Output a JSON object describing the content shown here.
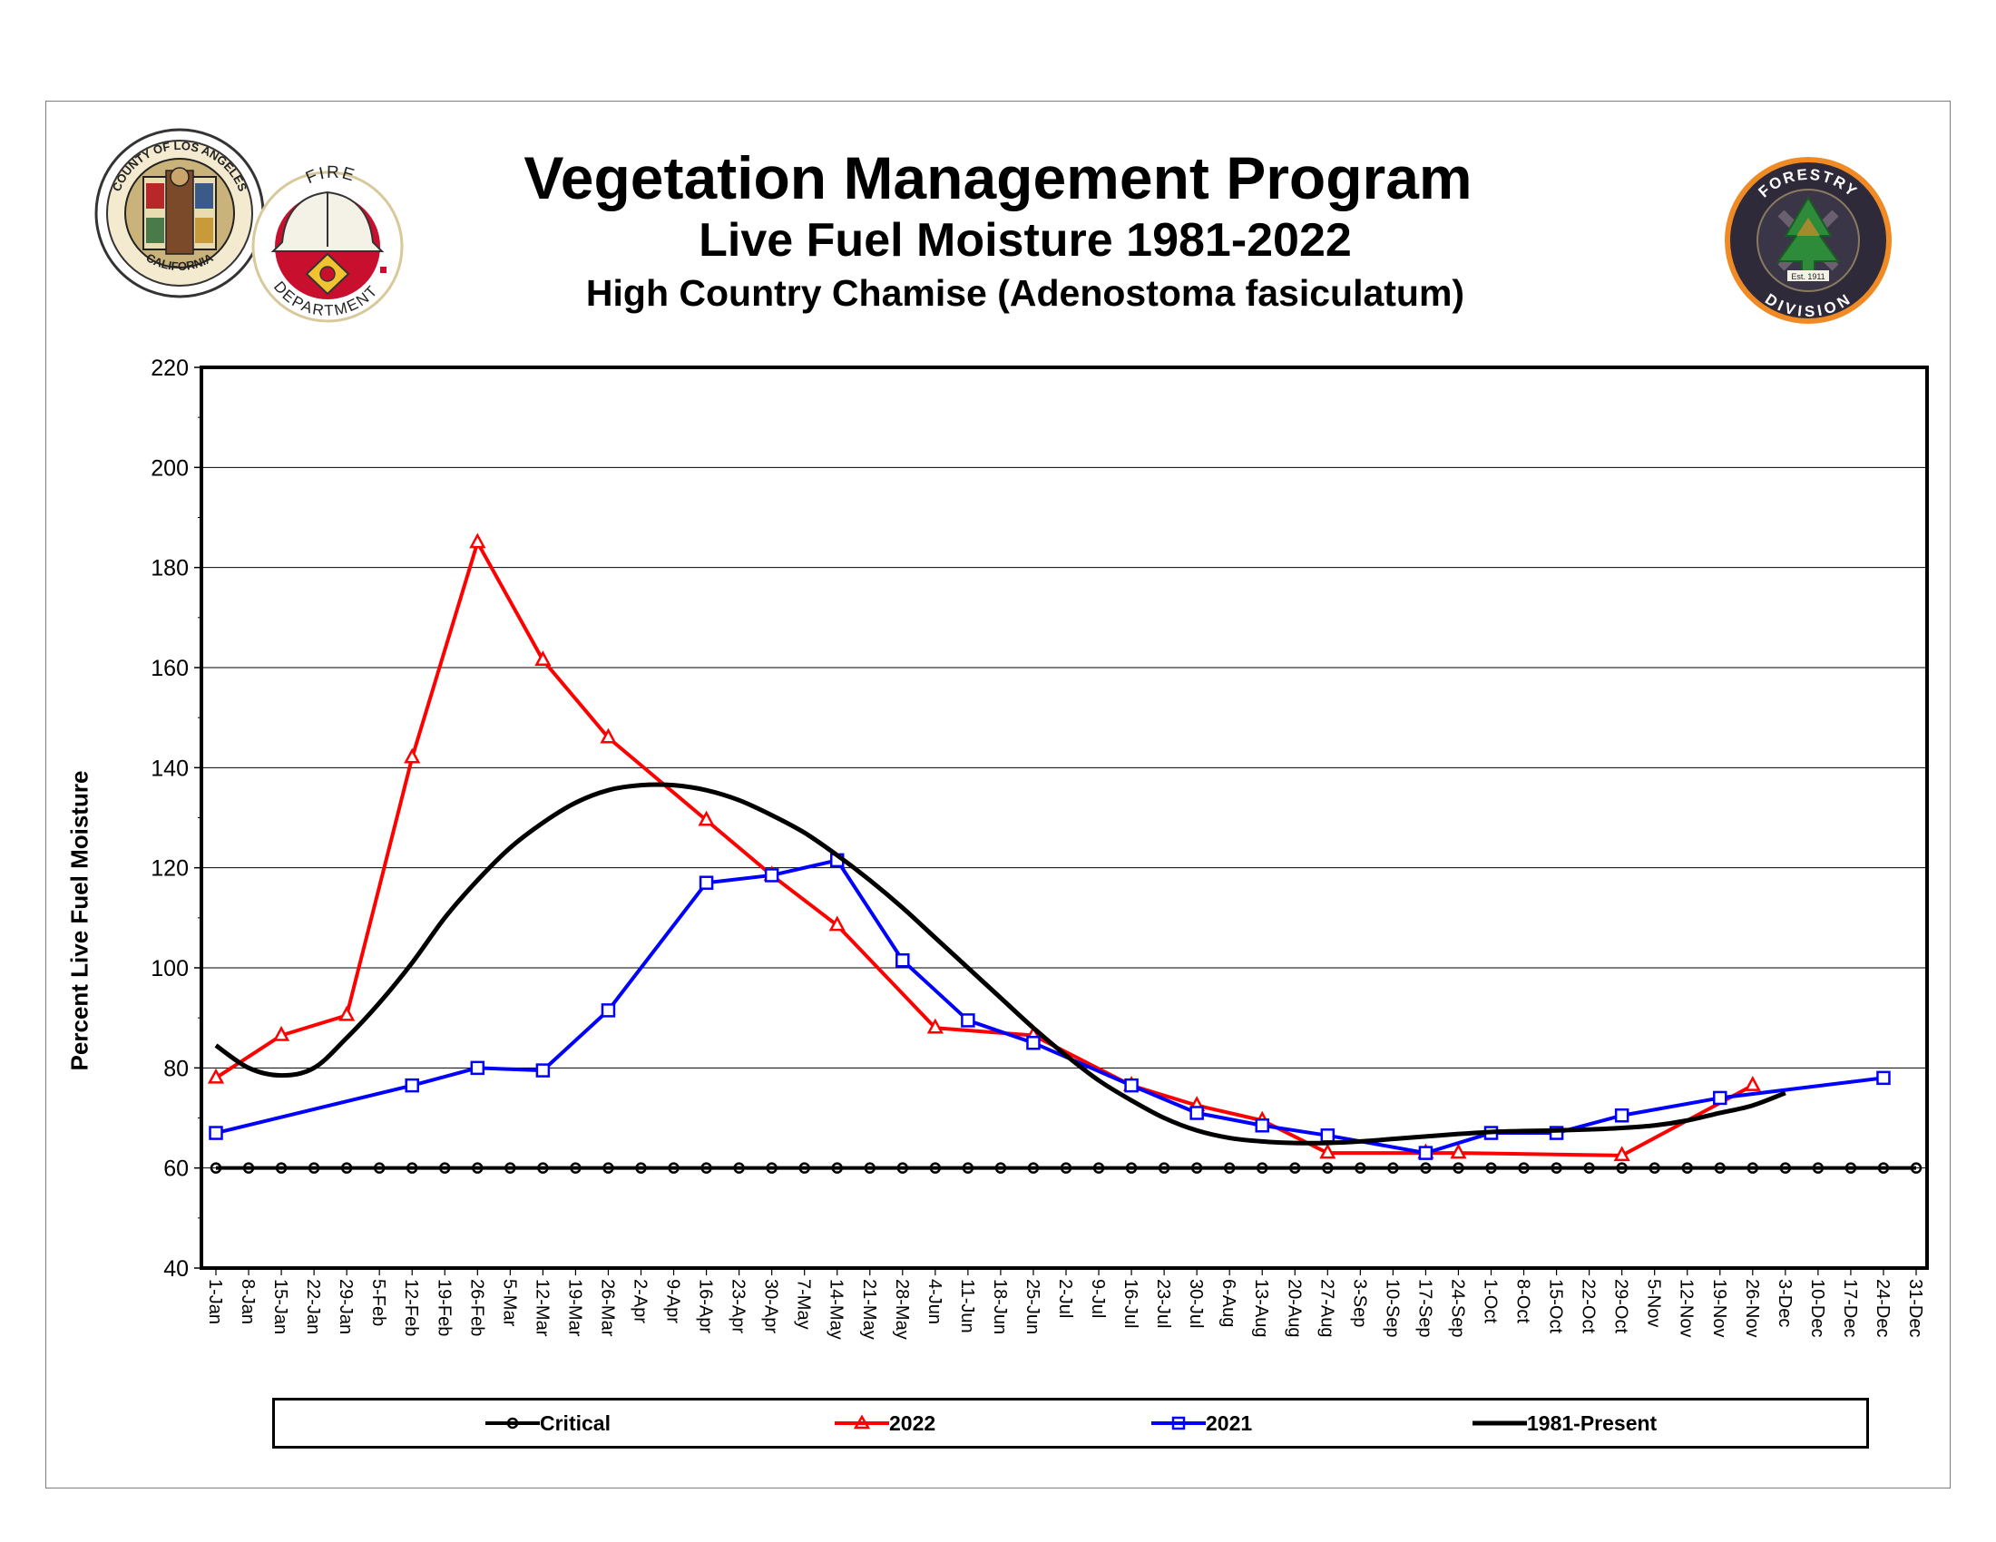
{
  "title": "Vegetation Management Program",
  "subtitle": "Live Fuel Moisture 1981-2022",
  "subtitle2": "High Country Chamise (Adenostoma fasiculatum)",
  "logos": {
    "county_seal": {
      "top_text": "COUNTY OF LOS ANGELES",
      "bottom_text": "CALIFORNIA"
    },
    "fire_dept": {
      "top_text": "FIRE",
      "bottom_text": "DEPARTMENT"
    },
    "forestry": {
      "top_text": "FORESTRY",
      "bottom_text": "DIVISION",
      "est": "Est. 1911"
    }
  },
  "colors": {
    "critical": "#000000",
    "y2022": "#ff0000",
    "y2021": "#0000ff",
    "avg": "#000000"
  },
  "chart_data": {
    "type": "line",
    "ylabel": "Percent Live Fuel Moisture",
    "xlabel": "",
    "ylim": [
      40,
      220
    ],
    "yticks": [
      40,
      60,
      80,
      100,
      120,
      140,
      160,
      180,
      200,
      220
    ],
    "grid": true,
    "legend_position": "bottom",
    "categories": [
      "1-Jan",
      "8-Jan",
      "15-Jan",
      "22-Jan",
      "29-Jan",
      "5-Feb",
      "12-Feb",
      "19-Feb",
      "26-Feb",
      "5-Mar",
      "12-Mar",
      "19-Mar",
      "26-Mar",
      "2-Apr",
      "9-Apr",
      "16-Apr",
      "23-Apr",
      "30-Apr",
      "7-May",
      "14-May",
      "21-May",
      "28-May",
      "4-Jun",
      "11-Jun",
      "18-Jun",
      "25-Jun",
      "2-Jul",
      "9-Jul",
      "16-Jul",
      "23-Jul",
      "30-Jul",
      "6-Aug",
      "13-Aug",
      "20-Aug",
      "27-Aug",
      "3-Sep",
      "10-Sep",
      "17-Sep",
      "24-Sep",
      "1-Oct",
      "8-Oct",
      "15-Oct",
      "22-Oct",
      "29-Oct",
      "5-Nov",
      "12-Nov",
      "19-Nov",
      "26-Nov",
      "3-Dec",
      "10-Dec",
      "17-Dec",
      "24-Dec",
      "31-Dec"
    ],
    "series": [
      {
        "name": "Critical",
        "marker": "circle",
        "points": [
          [
            0,
            60
          ],
          [
            1,
            60
          ],
          [
            2,
            60
          ],
          [
            3,
            60
          ],
          [
            4,
            60
          ],
          [
            5,
            60
          ],
          [
            6,
            60
          ],
          [
            7,
            60
          ],
          [
            8,
            60
          ],
          [
            9,
            60
          ],
          [
            10,
            60
          ],
          [
            11,
            60
          ],
          [
            12,
            60
          ],
          [
            13,
            60
          ],
          [
            14,
            60
          ],
          [
            15,
            60
          ],
          [
            16,
            60
          ],
          [
            17,
            60
          ],
          [
            18,
            60
          ],
          [
            19,
            60
          ],
          [
            20,
            60
          ],
          [
            21,
            60
          ],
          [
            22,
            60
          ],
          [
            23,
            60
          ],
          [
            24,
            60
          ],
          [
            25,
            60
          ],
          [
            26,
            60
          ],
          [
            27,
            60
          ],
          [
            28,
            60
          ],
          [
            29,
            60
          ],
          [
            30,
            60
          ],
          [
            31,
            60
          ],
          [
            32,
            60
          ],
          [
            33,
            60
          ],
          [
            34,
            60
          ],
          [
            35,
            60
          ],
          [
            36,
            60
          ],
          [
            37,
            60
          ],
          [
            38,
            60
          ],
          [
            39,
            60
          ],
          [
            40,
            60
          ],
          [
            41,
            60
          ],
          [
            42,
            60
          ],
          [
            43,
            60
          ],
          [
            44,
            60
          ],
          [
            45,
            60
          ],
          [
            46,
            60
          ],
          [
            47,
            60
          ],
          [
            48,
            60
          ],
          [
            49,
            60
          ],
          [
            50,
            60
          ],
          [
            51,
            60
          ],
          [
            52,
            60
          ]
        ]
      },
      {
        "name": "2022",
        "marker": "triangle",
        "points": [
          [
            0,
            78
          ],
          [
            2,
            86.5
          ],
          [
            4,
            90.5
          ],
          [
            6,
            142
          ],
          [
            8,
            185
          ],
          [
            10,
            161.5
          ],
          [
            12,
            146
          ],
          [
            15,
            129.5
          ],
          [
            17,
            118.5
          ],
          [
            19,
            108.5
          ],
          [
            22,
            88
          ],
          [
            25,
            86.5
          ],
          [
            28,
            76.5
          ],
          [
            30,
            72.5
          ],
          [
            32,
            69.5
          ],
          [
            34,
            63
          ],
          [
            37,
            63
          ],
          [
            38,
            63
          ],
          [
            43,
            62.5
          ],
          [
            47,
            76.5
          ]
        ]
      },
      {
        "name": "2021",
        "marker": "square",
        "points": [
          [
            0,
            67
          ],
          [
            6,
            76.5
          ],
          [
            8,
            80
          ],
          [
            10,
            79.5
          ],
          [
            12,
            91.5
          ],
          [
            15,
            117
          ],
          [
            17,
            118.5
          ],
          [
            19,
            121.5
          ],
          [
            21,
            101.5
          ],
          [
            23,
            89.5
          ],
          [
            25,
            85
          ],
          [
            28,
            76.5
          ],
          [
            30,
            71
          ],
          [
            32,
            68.5
          ],
          [
            34,
            66.5
          ],
          [
            37,
            63
          ],
          [
            39,
            67
          ],
          [
            41,
            67
          ],
          [
            43,
            70.5
          ],
          [
            46,
            74
          ],
          [
            51,
            78
          ]
        ]
      },
      {
        "name": "1981-Present",
        "marker": "none",
        "smooth": true,
        "points": [
          [
            0,
            84.5
          ],
          [
            1,
            80
          ],
          [
            2,
            78.5
          ],
          [
            3,
            80
          ],
          [
            4,
            86
          ],
          [
            5,
            93
          ],
          [
            6,
            101
          ],
          [
            7,
            110
          ],
          [
            8,
            117.5
          ],
          [
            9,
            124
          ],
          [
            10,
            129
          ],
          [
            11,
            133
          ],
          [
            12,
            135.5
          ],
          [
            13,
            136.5
          ],
          [
            14,
            136.5
          ],
          [
            15,
            135.5
          ],
          [
            16,
            133.5
          ],
          [
            17,
            130.5
          ],
          [
            18,
            127
          ],
          [
            19,
            122.5
          ],
          [
            20,
            117.5
          ],
          [
            21,
            112
          ],
          [
            22,
            106
          ],
          [
            23,
            100
          ],
          [
            24,
            94
          ],
          [
            25,
            88
          ],
          [
            26,
            82.5
          ],
          [
            27,
            77.5
          ],
          [
            28,
            73.5
          ],
          [
            29,
            70
          ],
          [
            30,
            67.5
          ],
          [
            31,
            66
          ],
          [
            32,
            65.3
          ],
          [
            33,
            65
          ],
          [
            34,
            65
          ],
          [
            35,
            65.3
          ],
          [
            36,
            65.8
          ],
          [
            37,
            66.3
          ],
          [
            38,
            66.8
          ],
          [
            39,
            67.2
          ],
          [
            40,
            67.4
          ],
          [
            41,
            67.5
          ],
          [
            42,
            67.7
          ],
          [
            43,
            68
          ],
          [
            44,
            68.5
          ],
          [
            45,
            69.5
          ],
          [
            46,
            71
          ],
          [
            47,
            72.5
          ],
          [
            48,
            75
          ]
        ]
      }
    ]
  }
}
